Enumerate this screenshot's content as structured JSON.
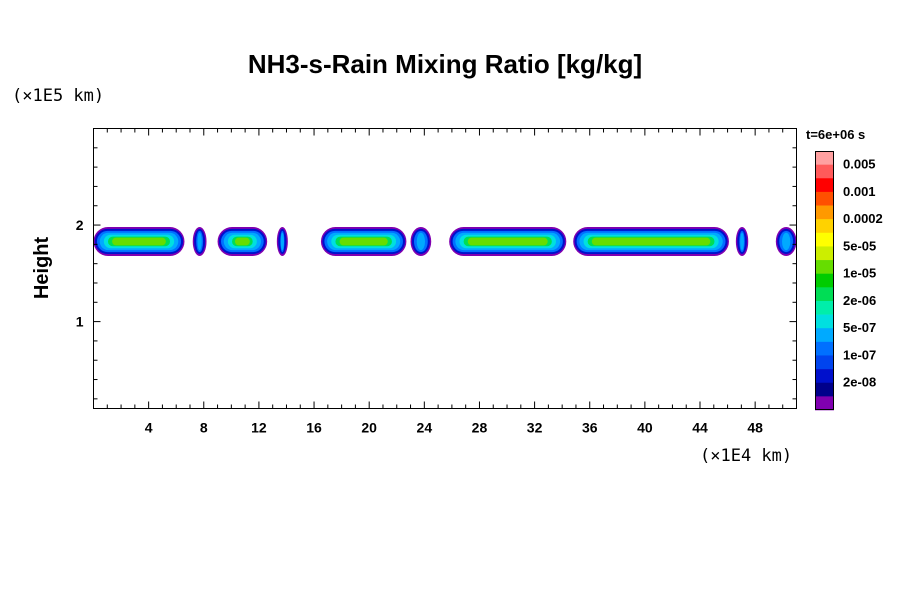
{
  "chart_data": {
    "type": "heatmap",
    "title": "NH3-s-Rain Mixing Ratio [kg/kg]",
    "ylabel": "Height",
    "xlabel": "",
    "x_unit": "(×1E4 km)",
    "y_unit": "(×1E5 km)",
    "time_label": "t=6e+06 s",
    "xlim": [
      0,
      51
    ],
    "ylim": [
      0.1,
      3.0
    ],
    "x_ticks": [
      4,
      8,
      12,
      16,
      20,
      24,
      28,
      32,
      36,
      40,
      44,
      48
    ],
    "y_ticks": [
      1,
      2
    ],
    "colorbar": {
      "labels": [
        "0.005",
        "0.001",
        "0.0002",
        "5e-05",
        "1e-05",
        "2e-06",
        "5e-07",
        "1e-07",
        "2e-08"
      ],
      "colors_top_to_bottom": [
        "#ffa0a0",
        "#ff5a5a",
        "#ff0000",
        "#ff5000",
        "#ff9900",
        "#ffd200",
        "#ffff00",
        "#ccee00",
        "#66dd00",
        "#00cc00",
        "#00dd55",
        "#00eeaa",
        "#00e0e0",
        "#00aaff",
        "#0070ff",
        "#0044ee",
        "#0010cc",
        "#00008b",
        "#8000b0"
      ]
    },
    "cloud_layer": {
      "base_height": 1.68,
      "top_height": 1.98,
      "core_height": 1.82,
      "segments_x": [
        [
          0,
          6.6
        ],
        [
          7.2,
          8.2
        ],
        [
          9.0,
          12.6
        ],
        [
          13.3,
          14.1
        ],
        [
          16.5,
          22.7
        ],
        [
          23.0,
          24.5
        ],
        [
          25.8,
          34.3
        ],
        [
          34.8,
          46.1
        ],
        [
          46.6,
          47.5
        ],
        [
          49.5,
          51
        ]
      ]
    }
  }
}
